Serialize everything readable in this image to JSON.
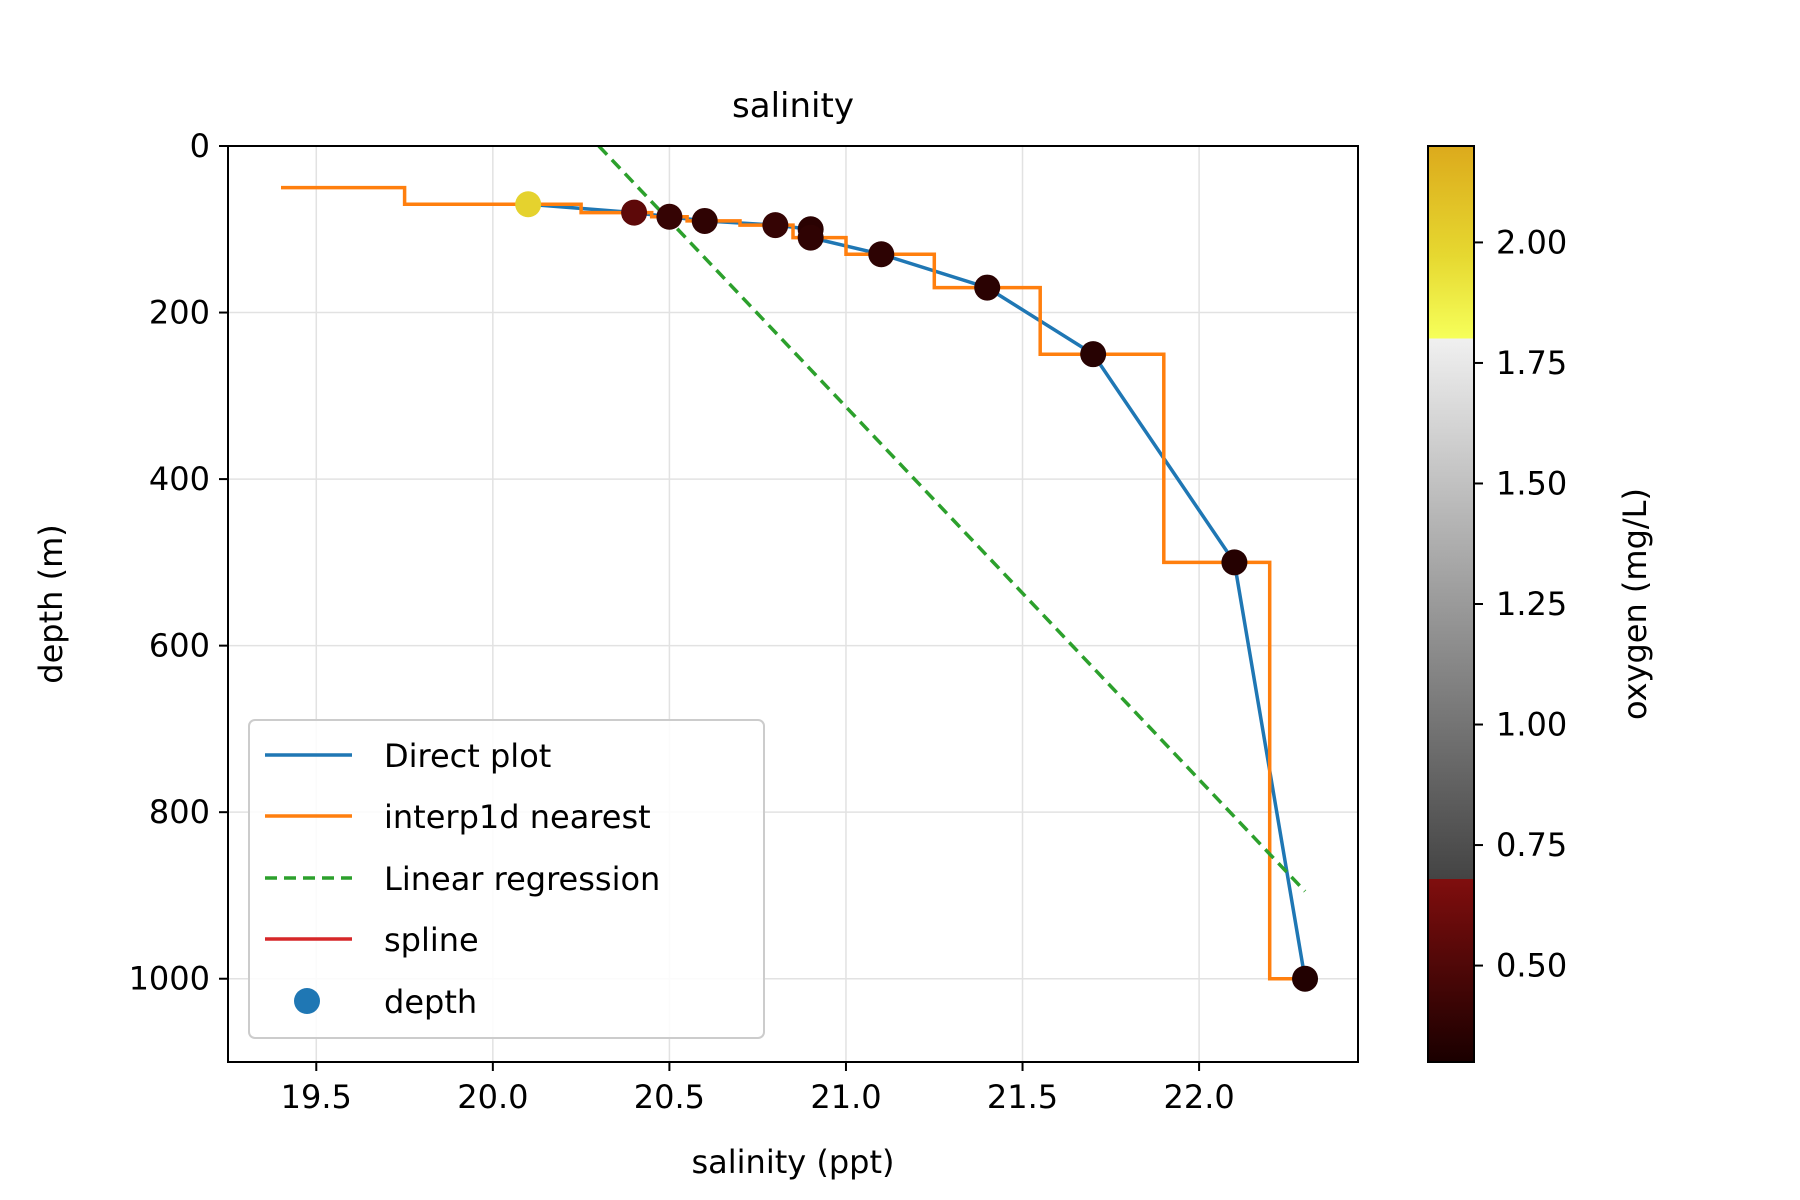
{
  "chart_data": {
    "type": "line",
    "title": "salinity",
    "xlabel": "salinity (ppt)",
    "ylabel": "depth (m)",
    "xlim": [
      19.25,
      22.45
    ],
    "ylim": [
      1100,
      0
    ],
    "xticks": [
      19.5,
      20.0,
      20.5,
      21.0,
      21.5,
      22.0
    ],
    "xtick_labels": [
      "19.5",
      "20.0",
      "20.5",
      "21.0",
      "21.5",
      "22.0"
    ],
    "yticks": [
      0,
      200,
      400,
      600,
      800,
      1000
    ],
    "ytick_labels": [
      "0",
      "200",
      "400",
      "600",
      "800",
      "1000"
    ],
    "grid": true,
    "series": [
      {
        "name": "Direct plot",
        "type": "line",
        "color": "#1f77b4",
        "x": [
          20.1,
          20.4,
          20.5,
          20.6,
          20.8,
          20.9,
          20.9,
          21.1,
          21.4,
          21.7,
          22.1,
          22.3
        ],
        "y": [
          70,
          80,
          85,
          90,
          95,
          100,
          110,
          130,
          170,
          250,
          500,
          1000
        ]
      },
      {
        "name": "interp1d nearest",
        "type": "step",
        "color": "#ff7f0e",
        "x": [
          19.4,
          19.75,
          19.75,
          20.25,
          20.25,
          20.45,
          20.45,
          20.55,
          20.55,
          20.7,
          20.7,
          20.85,
          20.85,
          21.0,
          21.0,
          21.25,
          21.25,
          21.55,
          21.55,
          21.9,
          21.9,
          22.2,
          22.2,
          22.3
        ],
        "y": [
          50,
          50,
          70,
          70,
          80,
          80,
          85,
          85,
          90,
          90,
          95,
          95,
          110,
          110,
          130,
          130,
          170,
          170,
          250,
          250,
          500,
          500,
          1000,
          1000
        ]
      },
      {
        "name": "Linear regression",
        "type": "dashed",
        "color": "#2ca02c",
        "x": [
          20.3,
          22.3
        ],
        "y": [
          0,
          895
        ]
      },
      {
        "name": "spline",
        "type": "line",
        "color": "#d62728",
        "x": [],
        "y": []
      },
      {
        "name": "depth",
        "type": "scatter",
        "color": "#1f77b4",
        "x": [
          20.1,
          20.4,
          20.5,
          20.6,
          20.8,
          20.9,
          20.9,
          21.1,
          21.4,
          21.7,
          22.1,
          22.3
        ],
        "y": [
          70,
          80,
          85,
          90,
          95,
          100,
          110,
          130,
          170,
          250,
          500,
          1000
        ],
        "oxygen": [
          2.0,
          0.55,
          0.4,
          0.38,
          0.4,
          0.36,
          0.38,
          0.37,
          0.36,
          0.35,
          0.34,
          0.33
        ]
      }
    ],
    "colorbar": {
      "label": "oxygen (mg/L)",
      "range": [
        0.3,
        2.2
      ],
      "ticks": [
        0.5,
        0.75,
        1.0,
        1.25,
        1.5,
        1.75,
        2.0
      ],
      "tick_labels": [
        "0.50",
        "0.75",
        "1.00",
        "1.25",
        "1.50",
        "1.75",
        "2.00"
      ]
    },
    "legend": {
      "position": "lower-left",
      "entries": [
        "Direct plot",
        "interp1d nearest",
        "Linear regression",
        "spline",
        "depth"
      ]
    }
  }
}
